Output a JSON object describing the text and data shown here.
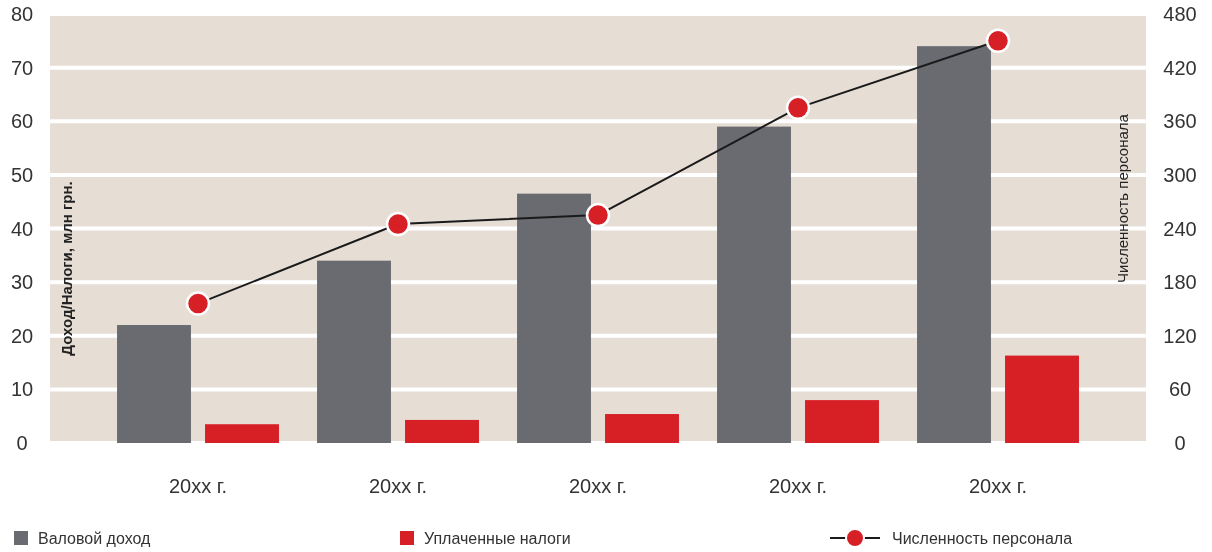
{
  "chart_data": {
    "type": "bar",
    "ylabel": "Доход/Налоги, млн грн.",
    "y2label": "Численность персонала",
    "categories": [
      "20xx г.",
      "20xx г.",
      "20xx г.",
      "20xx г.",
      "20xx г."
    ],
    "series": [
      {
        "name": "Валовой доход",
        "color": "#696b70",
        "values": [
          22,
          34,
          46.5,
          59,
          74
        ]
      },
      {
        "name": "Уплаченные налоги",
        "color": "#d71f26",
        "values": [
          3.5,
          4.3,
          5.4,
          8,
          16.3
        ]
      },
      {
        "name": "Численность персонала",
        "type": "line",
        "axis": "y2",
        "color": "#d71f26",
        "values": [
          156,
          245,
          255,
          375,
          450
        ]
      }
    ],
    "ylim": [
      0,
      80
    ],
    "yticks": [
      0,
      10,
      20,
      30,
      40,
      50,
      60,
      70,
      80
    ],
    "y2lim": [
      0,
      480
    ],
    "y2ticks": [
      0,
      60,
      120,
      180,
      240,
      300,
      360,
      420,
      480
    ],
    "grid": "y",
    "legend": "bottom",
    "marker": "circle",
    "line_style": "solid"
  }
}
